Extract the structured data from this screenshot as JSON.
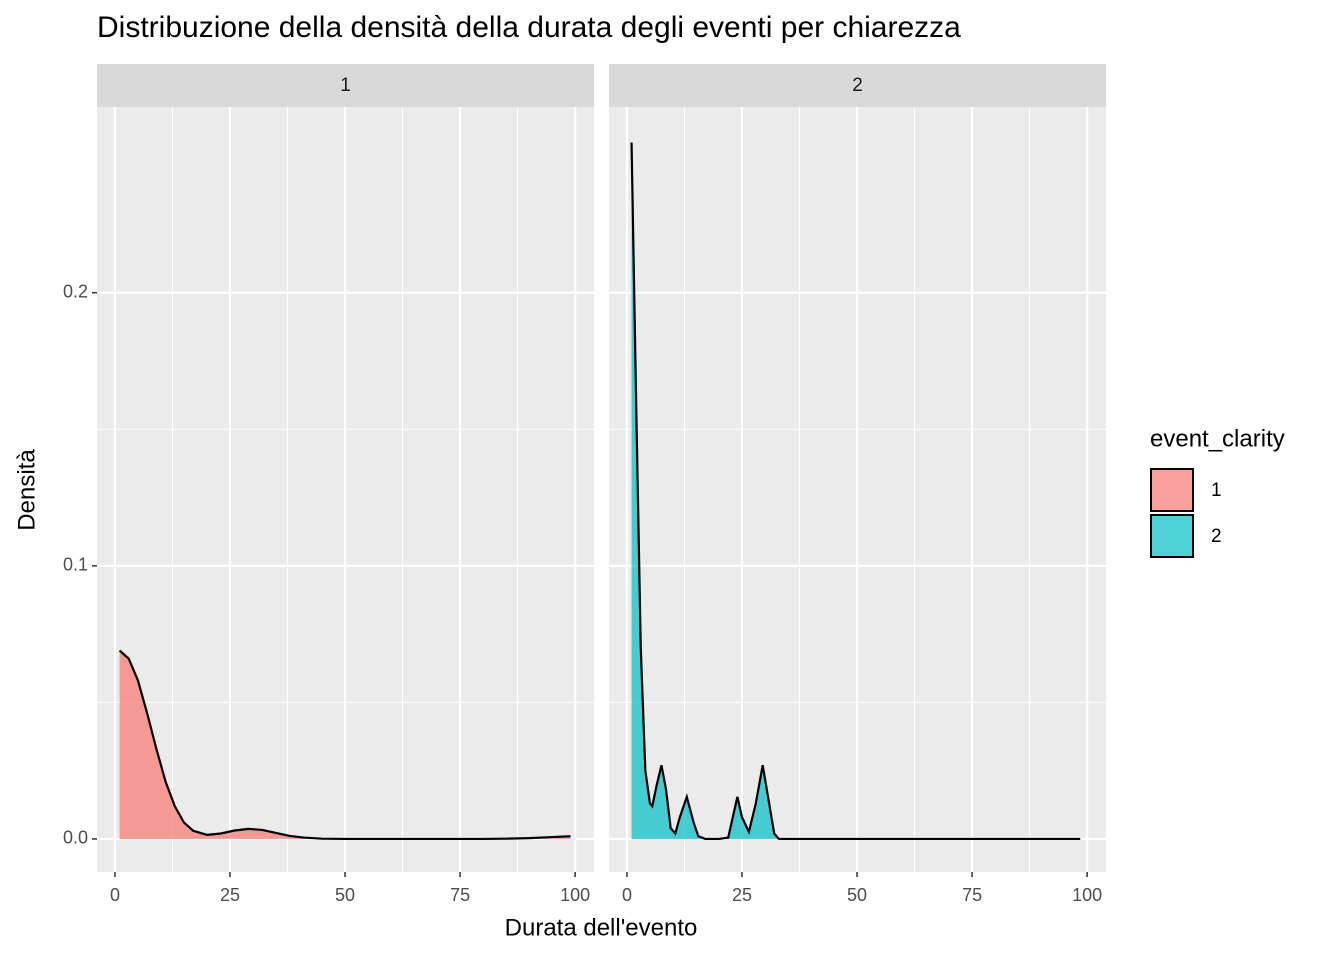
{
  "chart_data": {
    "type": "density",
    "title": "Distribuzione della densità della durata degli eventi per chiarezza",
    "xlabel": "Durata dell'evento",
    "ylabel": "Densità",
    "legend_title": "event_clarity",
    "series": [
      {
        "name": "1",
        "color": "#F8766D",
        "x": [
          1,
          3,
          5,
          7,
          9,
          11,
          13,
          15,
          17,
          20,
          23,
          26,
          29,
          32,
          35,
          38,
          41,
          45,
          50,
          60,
          70,
          80,
          85,
          90,
          95,
          99
        ],
        "values": [
          0.069,
          0.066,
          0.058,
          0.046,
          0.033,
          0.021,
          0.012,
          0.006,
          0.003,
          0.0015,
          0.002,
          0.0031,
          0.0037,
          0.0033,
          0.0022,
          0.0011,
          0.0005,
          0.0001,
          0,
          0,
          0,
          0,
          0.0001,
          0.0003,
          0.0007,
          0.001
        ]
      },
      {
        "name": "2",
        "color": "#00BFC4",
        "x": [
          1,
          2,
          3,
          4,
          5,
          5.5,
          6.5,
          7.5,
          8.5,
          9.5,
          10.5,
          11.5,
          13,
          14.5,
          15.5,
          17,
          20,
          22,
          23,
          24,
          25,
          26.5,
          28,
          29.5,
          31,
          32,
          33,
          40,
          60,
          80,
          98.5
        ],
        "values": [
          0.255,
          0.16,
          0.07,
          0.025,
          0.013,
          0.012,
          0.02,
          0.027,
          0.018,
          0.004,
          0.002,
          0.008,
          0.0154,
          0.006,
          0.001,
          0,
          0,
          0.0005,
          0.008,
          0.0154,
          0.008,
          0.0026,
          0.013,
          0.027,
          0.012,
          0.002,
          0,
          0,
          0,
          0,
          0
        ]
      }
    ],
    "alpha": 0.7,
    "xlim": [
      -3.9,
      104.1
    ],
    "xticks": [
      0,
      25,
      50,
      75,
      100
    ],
    "ylim": [
      -0.0121,
      0.268
    ],
    "yticks": [
      {
        "value": 0,
        "label": "0.0"
      },
      0.1,
      0.2
    ],
    "grid": true,
    "legend": "right"
  }
}
